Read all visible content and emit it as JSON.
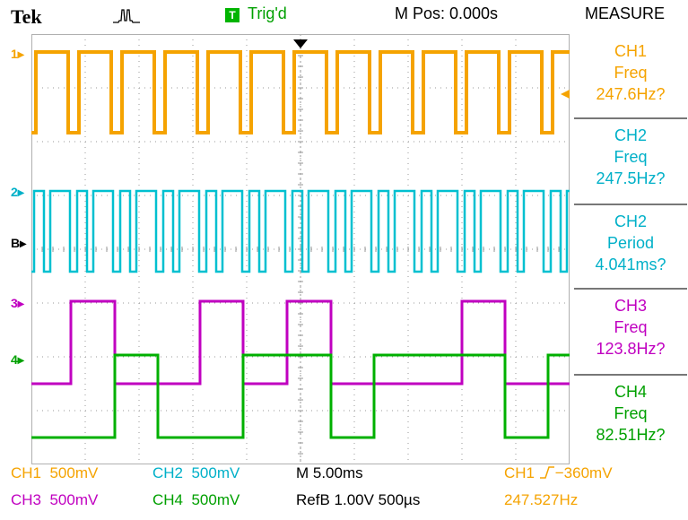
{
  "header": {
    "brand": "Tek",
    "trigger_badge": "T",
    "trigger_status": "Trig'd",
    "position_readout": "M Pos: 0.000s",
    "menu_title": "MEASURE"
  },
  "channel_markers": {
    "ch1": "1",
    "ch2": "2",
    "ch3": "3",
    "ch4": "4",
    "ref_b": "B"
  },
  "measurements": [
    {
      "source": "CH1",
      "type": "Freq",
      "value": "247.6Hz?",
      "color": "#f5a300"
    },
    {
      "source": "CH2",
      "type": "Freq",
      "value": "247.5Hz?",
      "color": "#00b0c8"
    },
    {
      "source": "CH2",
      "type": "Period",
      "value": "4.041ms?",
      "color": "#00b0c8"
    },
    {
      "source": "CH3",
      "type": "Freq",
      "value": "123.8Hz?",
      "color": "#c000c0"
    },
    {
      "source": "CH4",
      "type": "Freq",
      "value": "82.51Hz?",
      "color": "#00a000"
    }
  ],
  "footer": {
    "ch1_label": "CH1",
    "ch1_scale": "500mV",
    "ch2_label": "CH2",
    "ch2_scale": "500mV",
    "ch3_label": "CH3",
    "ch3_scale": "500mV",
    "ch4_label": "CH4",
    "ch4_scale": "500mV",
    "timebase": "M 5.00ms",
    "ref_b": "RefB 1.00V 500µs",
    "trigger_source": "CH1",
    "trigger_level": "−360mV",
    "trigger_frequency": "247.527Hz"
  },
  "colors": {
    "ch1": "#f5a300",
    "ch2": "#00c0d0",
    "ch3": "#c000c0",
    "ch4": "#00b000",
    "grid": "#9a9a9a"
  }
}
